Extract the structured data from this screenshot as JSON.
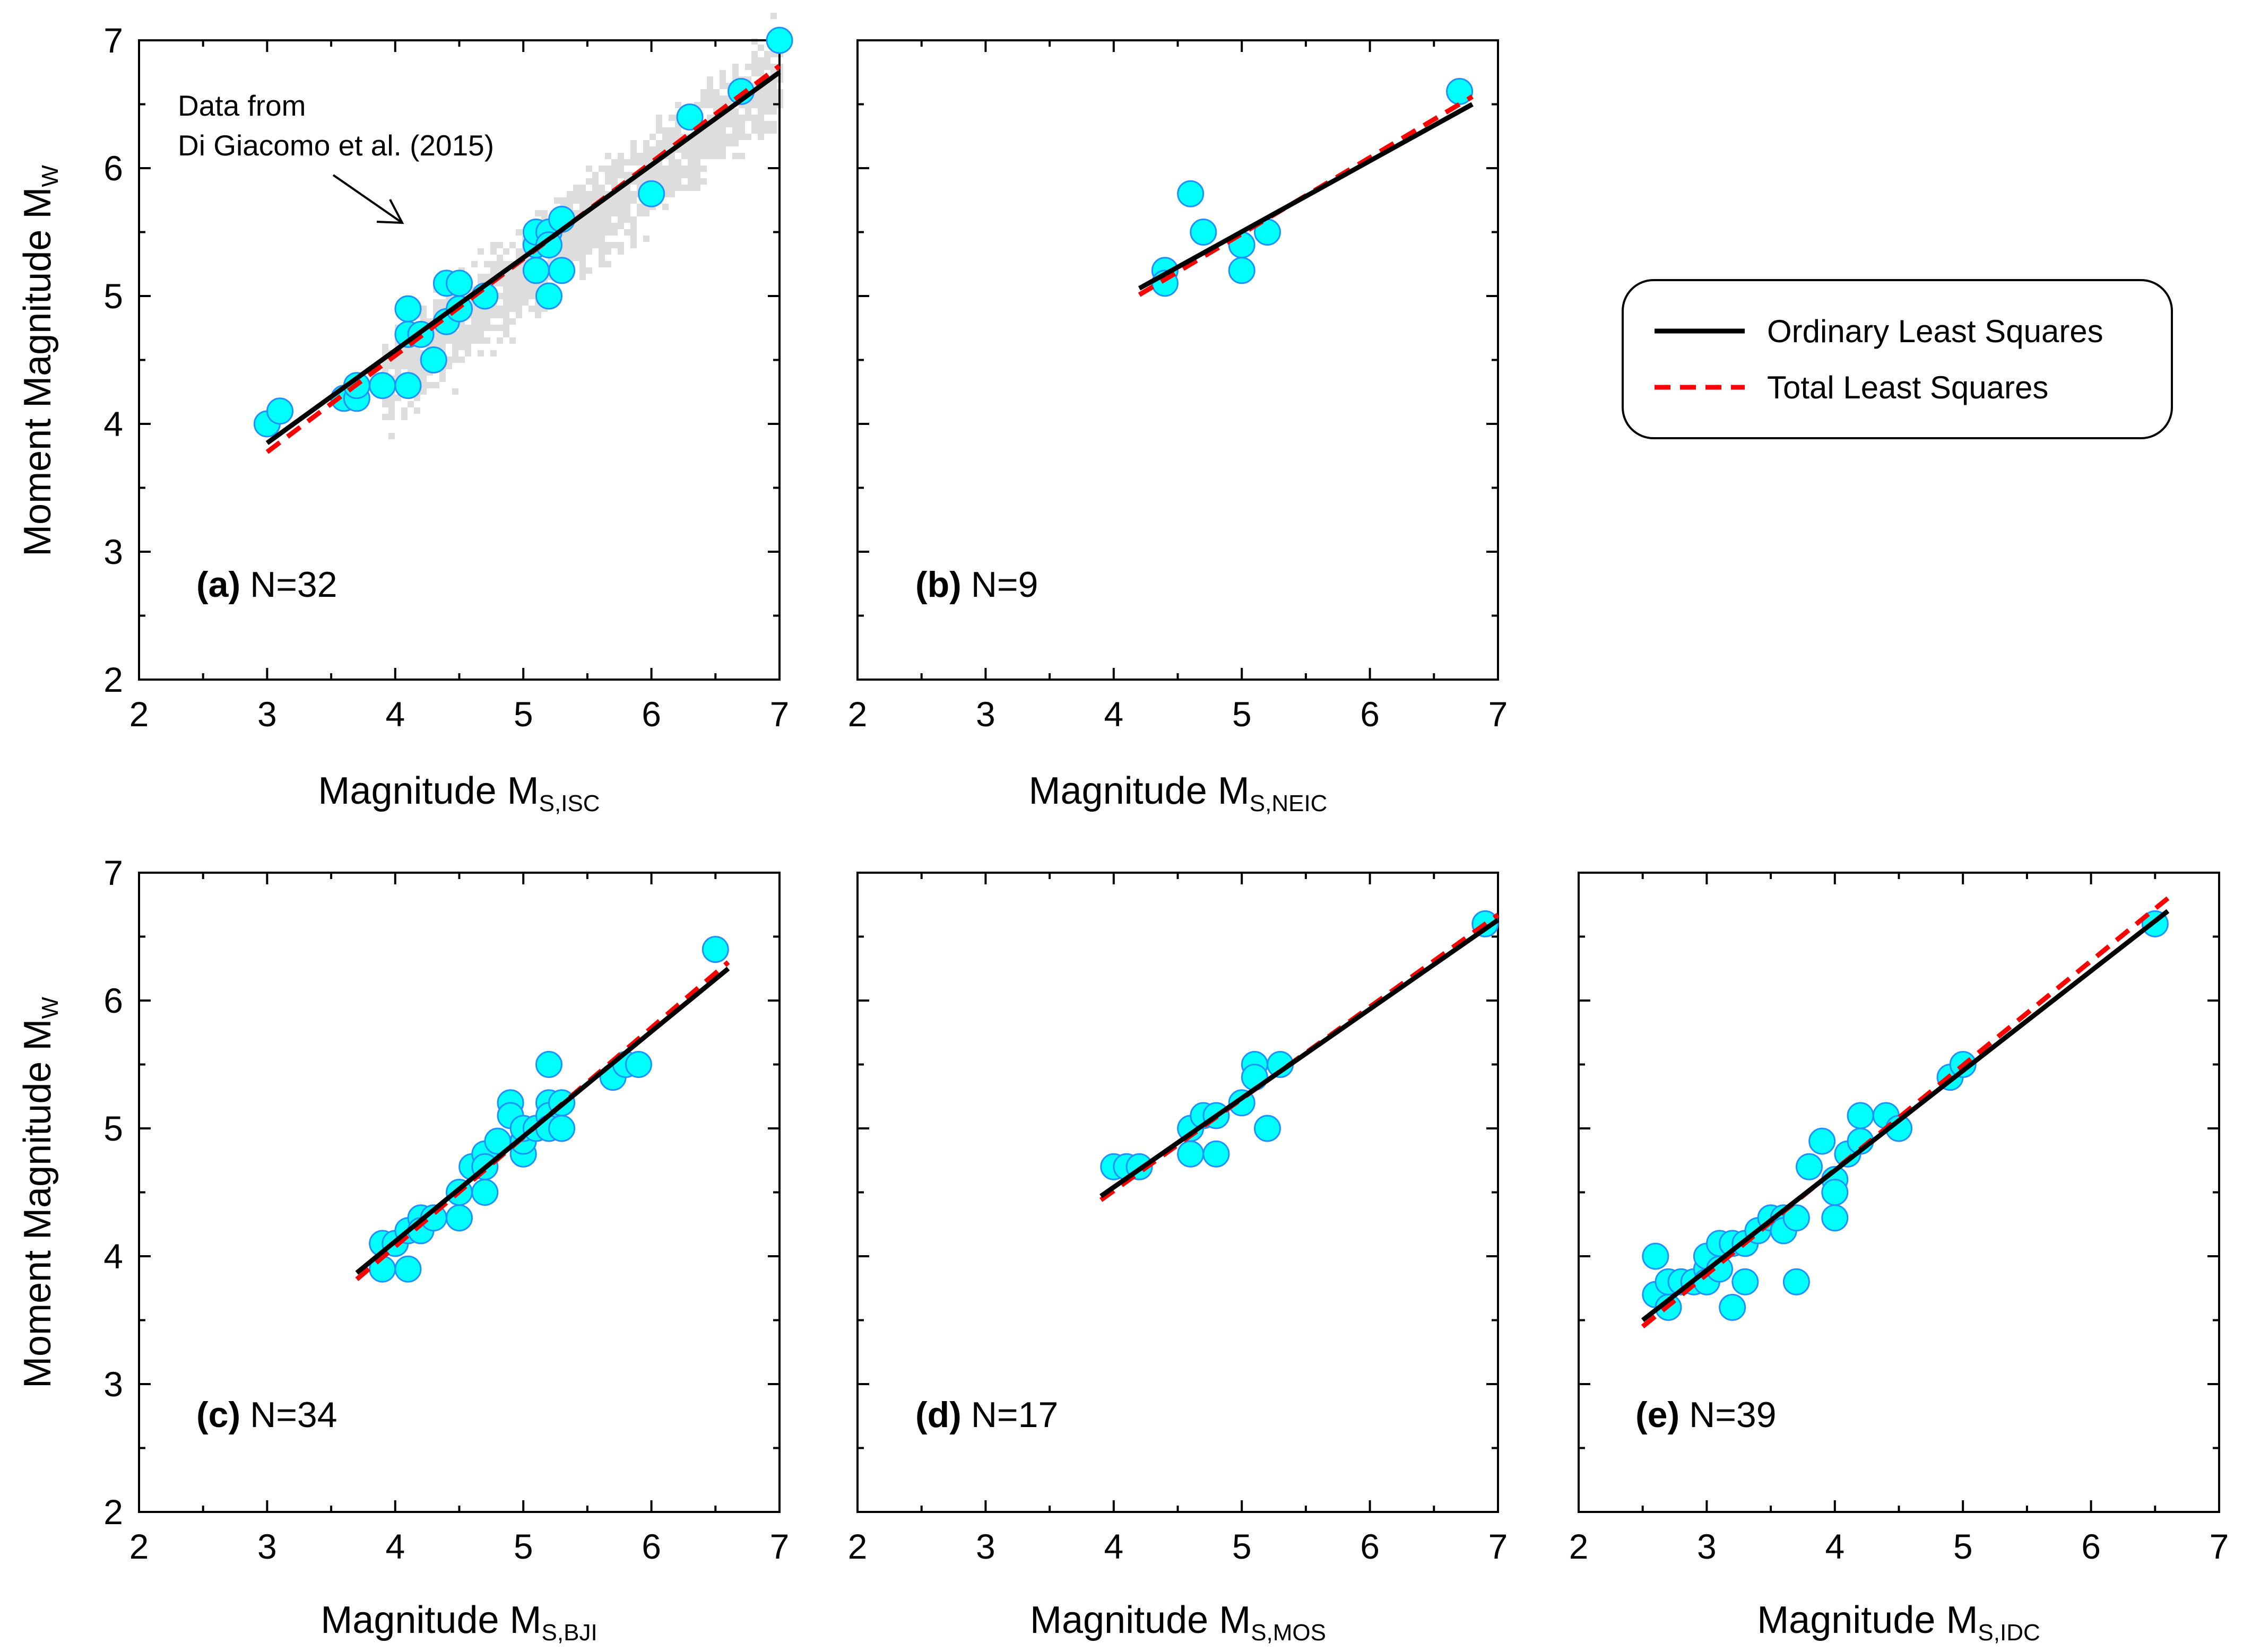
{
  "colors": {
    "marker_fill": "#00FFFF",
    "marker_edge": "#1E90FF",
    "ols_line": "#000000",
    "tls_line": "#FF0000",
    "background_cloud": "#DDDDDD"
  },
  "legend": {
    "position": "right of top row",
    "entries": [
      {
        "label": "Ordinary Least Squares",
        "style": "solid",
        "color": "#000000"
      },
      {
        "label": "Total Least Squares",
        "style": "dashed",
        "color": "#FF0000"
      }
    ]
  },
  "chart_data": [
    {
      "id": "a",
      "type": "scatter",
      "panel_letter": "(a)",
      "n_label": "N=32",
      "ylabel": "Moment Magnitude M",
      "ylabel_sub": "W",
      "xlabel": "Magnitude M",
      "xlabel_sub": "S,ISC",
      "xlim": [
        2,
        7
      ],
      "ylim": [
        2,
        7
      ],
      "xticks": [
        "2",
        "3",
        "4",
        "5",
        "6",
        "7"
      ],
      "yticks": [
        "2",
        "3",
        "4",
        "5",
        "6",
        "7"
      ],
      "annotation": {
        "line1": "Data from",
        "line2": "Di Giacomo et al. (2015)"
      },
      "background": {
        "x_range": [
          3.9,
          7.0
        ],
        "slope": 0.78,
        "intercept": 1.32,
        "spread": 0.35
      },
      "points": [
        [
          3.0,
          4.0
        ],
        [
          3.1,
          4.1
        ],
        [
          3.6,
          4.2
        ],
        [
          3.7,
          4.2
        ],
        [
          3.7,
          4.3
        ],
        [
          3.9,
          4.3
        ],
        [
          4.1,
          4.3
        ],
        [
          4.1,
          4.7
        ],
        [
          4.1,
          4.9
        ],
        [
          4.2,
          4.7
        ],
        [
          4.3,
          4.5
        ],
        [
          4.4,
          4.8
        ],
        [
          4.4,
          5.1
        ],
        [
          4.5,
          4.9
        ],
        [
          4.5,
          5.1
        ],
        [
          4.7,
          5.0
        ],
        [
          5.1,
          5.2
        ],
        [
          5.1,
          5.4
        ],
        [
          5.1,
          5.5
        ],
        [
          5.2,
          5.5
        ],
        [
          5.2,
          5.0
        ],
        [
          5.3,
          5.2
        ],
        [
          5.3,
          5.6
        ],
        [
          5.2,
          5.4
        ],
        [
          6.0,
          5.8
        ],
        [
          6.3,
          6.4
        ],
        [
          6.7,
          6.6
        ],
        [
          7.0,
          7.0
        ]
      ],
      "ols": {
        "x": [
          3.0,
          7.0
        ],
        "y": [
          3.85,
          6.75
        ]
      },
      "tls": {
        "x": [
          3.0,
          7.0
        ],
        "y": [
          3.78,
          6.8
        ]
      }
    },
    {
      "id": "b",
      "type": "scatter",
      "panel_letter": "(b)",
      "n_label": "N=9",
      "xlabel": "Magnitude M",
      "xlabel_sub": "S,NEIC",
      "xlim": [
        2,
        7
      ],
      "ylim": [
        2,
        7
      ],
      "xticks": [
        "2",
        "3",
        "4",
        "5",
        "6",
        "7"
      ],
      "yticks": [],
      "points": [
        [
          4.4,
          5.2
        ],
        [
          4.4,
          5.1
        ],
        [
          4.6,
          5.8
        ],
        [
          4.7,
          5.5
        ],
        [
          5.0,
          5.4
        ],
        [
          5.0,
          5.2
        ],
        [
          5.2,
          5.5
        ],
        [
          6.7,
          6.6
        ]
      ],
      "ols": {
        "x": [
          4.2,
          6.8
        ],
        "y": [
          5.06,
          6.5
        ]
      },
      "tls": {
        "x": [
          4.2,
          6.8
        ],
        "y": [
          5.01,
          6.56
        ]
      }
    },
    {
      "id": "c",
      "type": "scatter",
      "panel_letter": "(c)",
      "n_label": "N=34",
      "ylabel": "Moment Magnitude M",
      "ylabel_sub": "W",
      "xlabel": "Magnitude M",
      "xlabel_sub": "S,BJI",
      "xlim": [
        2,
        7
      ],
      "ylim": [
        2,
        7
      ],
      "xticks": [
        "2",
        "3",
        "4",
        "5",
        "6",
        "7"
      ],
      "yticks": [
        "2",
        "3",
        "4",
        "5",
        "6",
        "7"
      ],
      "points": [
        [
          3.9,
          4.1
        ],
        [
          3.9,
          3.9
        ],
        [
          4.0,
          4.1
        ],
        [
          4.1,
          4.2
        ],
        [
          4.1,
          3.9
        ],
        [
          4.2,
          4.3
        ],
        [
          4.2,
          4.2
        ],
        [
          4.3,
          4.3
        ],
        [
          4.5,
          4.5
        ],
        [
          4.5,
          4.3
        ],
        [
          4.6,
          4.7
        ],
        [
          4.7,
          4.8
        ],
        [
          4.7,
          4.5
        ],
        [
          4.7,
          4.7
        ],
        [
          4.8,
          4.9
        ],
        [
          4.9,
          5.2
        ],
        [
          4.9,
          5.1
        ],
        [
          5.0,
          4.8
        ],
        [
          5.0,
          4.9
        ],
        [
          5.0,
          5.0
        ],
        [
          5.1,
          5.0
        ],
        [
          5.2,
          5.5
        ],
        [
          5.2,
          5.2
        ],
        [
          5.2,
          5.1
        ],
        [
          5.2,
          5.0
        ],
        [
          5.3,
          5.2
        ],
        [
          5.3,
          5.0
        ],
        [
          5.7,
          5.4
        ],
        [
          5.8,
          5.5
        ],
        [
          5.9,
          5.5
        ],
        [
          6.5,
          6.4
        ]
      ],
      "ols": {
        "x": [
          3.7,
          6.6
        ],
        "y": [
          3.87,
          6.25
        ]
      },
      "tls": {
        "x": [
          3.7,
          6.6
        ],
        "y": [
          3.82,
          6.3
        ]
      }
    },
    {
      "id": "d",
      "type": "scatter",
      "panel_letter": "(d)",
      "n_label": "N=17",
      "xlabel": "Magnitude M",
      "xlabel_sub": "S,MOS",
      "xlim": [
        2,
        7
      ],
      "ylim": [
        2,
        7
      ],
      "xticks": [
        "2",
        "3",
        "4",
        "5",
        "6",
        "7"
      ],
      "yticks": [],
      "points": [
        [
          4.0,
          4.7
        ],
        [
          4.1,
          4.7
        ],
        [
          4.2,
          4.7
        ],
        [
          4.6,
          5.0
        ],
        [
          4.6,
          4.8
        ],
        [
          4.7,
          5.1
        ],
        [
          4.8,
          5.1
        ],
        [
          4.8,
          4.8
        ],
        [
          5.0,
          5.2
        ],
        [
          5.1,
          5.5
        ],
        [
          5.1,
          5.4
        ],
        [
          5.2,
          5.0
        ],
        [
          5.3,
          5.5
        ],
        [
          6.9,
          6.6
        ]
      ],
      "ols": {
        "x": [
          3.9,
          7.0
        ],
        "y": [
          4.47,
          6.63
        ]
      },
      "tls": {
        "x": [
          3.9,
          7.0
        ],
        "y": [
          4.44,
          6.67
        ]
      }
    },
    {
      "id": "e",
      "type": "scatter",
      "panel_letter": "(e)",
      "n_label": "N=39",
      "xlabel": "Magnitude M",
      "xlabel_sub": "S,IDC",
      "xlim": [
        2,
        7
      ],
      "ylim": [
        2,
        7
      ],
      "xticks": [
        "2",
        "3",
        "4",
        "5",
        "6",
        "7"
      ],
      "yticks": [],
      "points": [
        [
          2.6,
          4.0
        ],
        [
          2.6,
          3.7
        ],
        [
          2.7,
          3.8
        ],
        [
          2.7,
          3.6
        ],
        [
          2.8,
          3.8
        ],
        [
          2.9,
          3.8
        ],
        [
          3.0,
          3.9
        ],
        [
          3.0,
          3.8
        ],
        [
          3.0,
          4.0
        ],
        [
          3.1,
          4.1
        ],
        [
          3.1,
          3.9
        ],
        [
          3.2,
          4.1
        ],
        [
          3.2,
          3.6
        ],
        [
          3.3,
          4.1
        ],
        [
          3.3,
          3.8
        ],
        [
          3.4,
          4.2
        ],
        [
          3.5,
          4.3
        ],
        [
          3.6,
          4.3
        ],
        [
          3.6,
          4.2
        ],
        [
          3.7,
          4.3
        ],
        [
          3.7,
          3.8
        ],
        [
          3.8,
          4.7
        ],
        [
          3.9,
          4.9
        ],
        [
          4.0,
          4.6
        ],
        [
          4.0,
          4.5
        ],
        [
          4.0,
          4.3
        ],
        [
          4.1,
          4.8
        ],
        [
          4.2,
          4.9
        ],
        [
          4.2,
          5.1
        ],
        [
          4.4,
          5.1
        ],
        [
          4.5,
          5.0
        ],
        [
          4.9,
          5.4
        ],
        [
          5.0,
          5.5
        ],
        [
          6.5,
          6.6
        ]
      ],
      "ols": {
        "x": [
          2.5,
          6.6
        ],
        "y": [
          3.5,
          6.7
        ]
      },
      "tls": {
        "x": [
          2.5,
          6.6
        ],
        "y": [
          3.45,
          6.8
        ]
      }
    }
  ]
}
